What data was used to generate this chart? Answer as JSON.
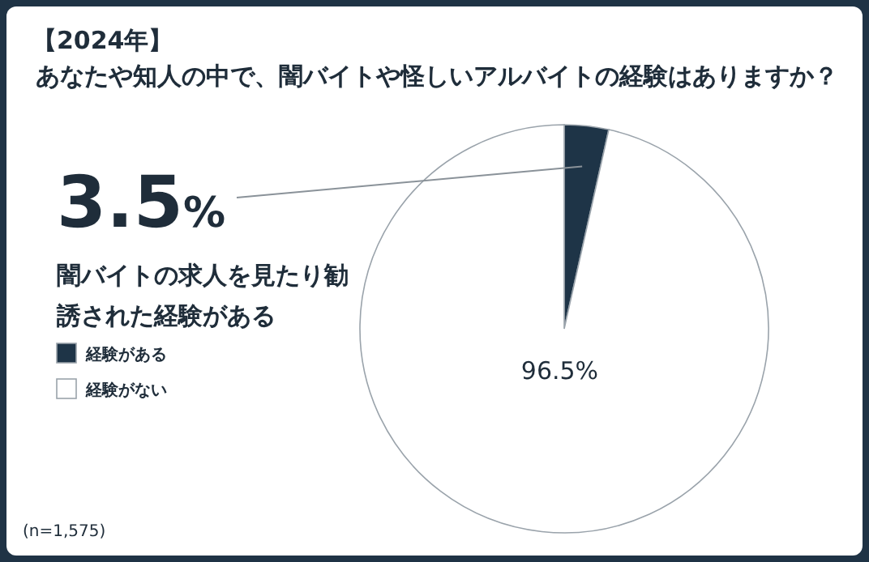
{
  "chart_data": {
    "type": "pie",
    "title": "【2024年】",
    "subtitle": "あなたや知人の中で、闇バイトや怪しいアルバイトの経験はありますか？",
    "categories": [
      "経験がある",
      "経験がない"
    ],
    "values": [
      3.5,
      96.5
    ],
    "colors": [
      "#1e3447",
      "#ffffff"
    ],
    "value_labels": [
      "3.5%",
      "96.5%"
    ],
    "legend": "left",
    "annotations": [
      "闇バイトの求人を見たり勧誘された経験がある",
      "(n=1,575)"
    ]
  }
}
